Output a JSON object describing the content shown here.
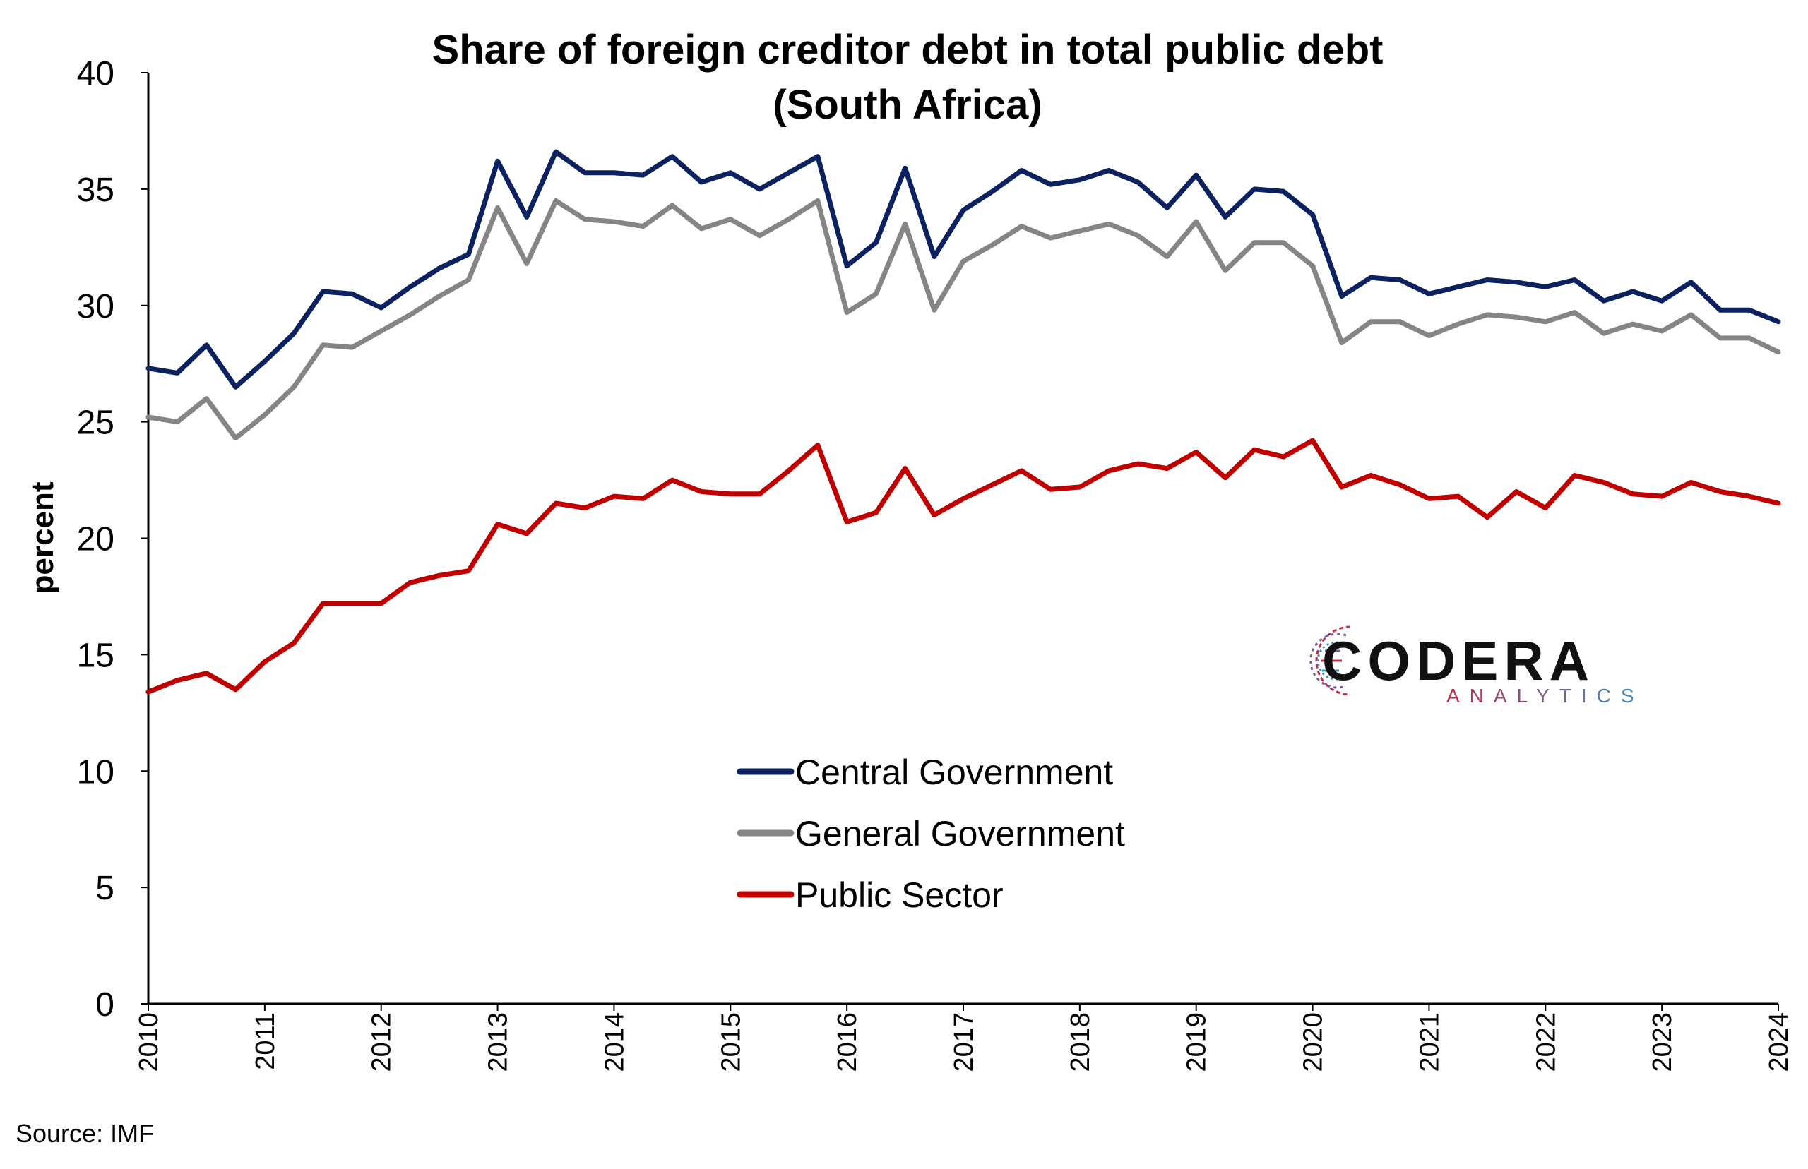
{
  "chart_data": {
    "type": "line",
    "title_lines": [
      "Share of foreign creditor debt in total public debt",
      "(South Africa)"
    ],
    "ylabel": "percent",
    "xlabel": "",
    "ylim": [
      0,
      40
    ],
    "yticks": [
      "0",
      "5",
      "10",
      "15",
      "20",
      "25",
      "30",
      "35",
      "40"
    ],
    "xlim": [
      2010,
      2024
    ],
    "xticks": [
      "2010",
      "2011",
      "2012",
      "2013",
      "2014",
      "2015",
      "2016",
      "2017",
      "2018",
      "2019",
      "2020",
      "2021",
      "2022",
      "2023",
      "2024"
    ],
    "grid": false,
    "legend_position": "center-bottom",
    "x": [
      2010.0,
      2010.25,
      2010.5,
      2010.75,
      2011.0,
      2011.25,
      2011.5,
      2011.75,
      2012.0,
      2012.25,
      2012.5,
      2012.75,
      2013.0,
      2013.25,
      2013.5,
      2013.75,
      2014.0,
      2014.25,
      2014.5,
      2014.75,
      2015.0,
      2015.25,
      2015.5,
      2015.75,
      2016.0,
      2016.25,
      2016.5,
      2016.75,
      2017.0,
      2017.25,
      2017.5,
      2017.75,
      2018.0,
      2018.25,
      2018.5,
      2018.75,
      2019.0,
      2019.25,
      2019.5,
      2019.75,
      2020.0,
      2020.25,
      2020.5,
      2020.75,
      2021.0,
      2021.25,
      2021.5,
      2021.75,
      2022.0,
      2022.25,
      2022.5,
      2022.75,
      2023.0,
      2023.25,
      2023.5,
      2023.75,
      2024.0
    ],
    "series": [
      {
        "name": "Central Government",
        "color": "#0b2160",
        "values": [
          27.3,
          27.1,
          28.3,
          26.5,
          27.6,
          28.8,
          30.6,
          30.5,
          29.9,
          30.8,
          31.6,
          32.2,
          36.2,
          33.8,
          36.6,
          35.7,
          35.7,
          35.6,
          36.4,
          35.3,
          35.7,
          35.0,
          35.7,
          36.4,
          31.7,
          32.7,
          35.9,
          32.1,
          34.1,
          34.9,
          35.8,
          35.2,
          35.4,
          35.8,
          35.3,
          34.2,
          35.6,
          33.8,
          35.0,
          34.9,
          33.9,
          30.4,
          31.2,
          31.1,
          30.5,
          30.8,
          31.1,
          31.0,
          30.8,
          31.1,
          30.2,
          30.6,
          30.2,
          31.0,
          29.8,
          29.8,
          29.3
        ]
      },
      {
        "name": "General Government",
        "color": "#858585",
        "values": [
          25.2,
          25.0,
          26.0,
          24.3,
          25.3,
          26.5,
          28.3,
          28.2,
          28.9,
          29.6,
          30.4,
          31.1,
          34.2,
          31.8,
          34.5,
          33.7,
          33.6,
          33.4,
          34.3,
          33.3,
          33.7,
          33.0,
          33.7,
          34.5,
          29.7,
          30.5,
          33.5,
          29.8,
          31.9,
          32.6,
          33.4,
          32.9,
          33.2,
          33.5,
          33.0,
          32.1,
          33.6,
          31.5,
          32.7,
          32.7,
          31.7,
          28.4,
          29.3,
          29.3,
          28.7,
          29.2,
          29.6,
          29.5,
          29.3,
          29.7,
          28.8,
          29.2,
          28.9,
          29.6,
          28.6,
          28.6,
          28.0
        ]
      },
      {
        "name": "Public Sector",
        "color": "#c00000",
        "values": [
          13.4,
          13.9,
          14.2,
          13.5,
          14.7,
          15.5,
          17.2,
          17.2,
          17.2,
          18.1,
          18.4,
          18.6,
          20.6,
          20.2,
          21.5,
          21.3,
          21.8,
          21.7,
          22.5,
          22.0,
          21.9,
          21.9,
          22.9,
          24.0,
          20.7,
          21.1,
          23.0,
          21.0,
          21.7,
          22.3,
          22.9,
          22.1,
          22.2,
          22.9,
          23.2,
          23.0,
          23.7,
          22.6,
          23.8,
          23.5,
          24.2,
          22.2,
          22.7,
          22.3,
          21.7,
          21.8,
          20.9,
          22.0,
          21.3,
          22.7,
          22.4,
          21.9,
          21.8,
          22.4,
          22.0,
          21.8,
          21.5
        ]
      }
    ]
  },
  "source_text": "Source: IMF",
  "logo": {
    "name": "CODERA",
    "subtitle": "ANALYTICS",
    "subtitle_colors": [
      "#c0304a",
      "#3a8fc6"
    ]
  }
}
